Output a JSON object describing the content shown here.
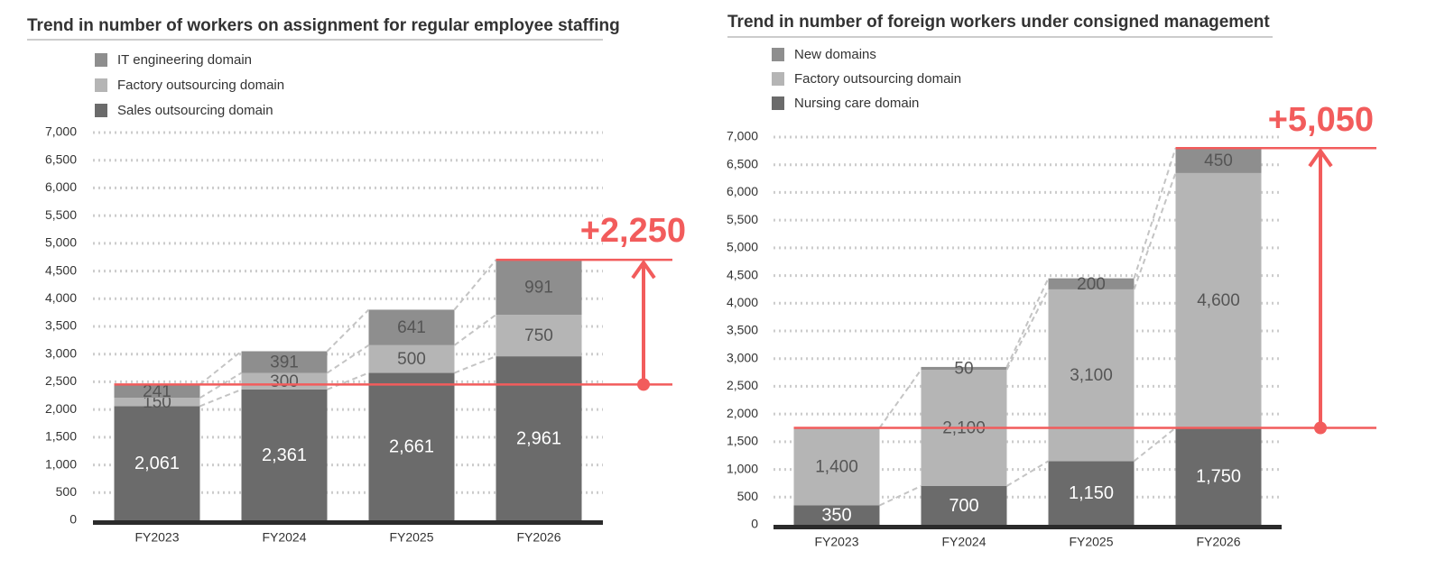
{
  "chart_data": [
    {
      "type": "bar",
      "stacked": true,
      "title": "Trend in number of workers on assignment for regular employee staffing",
      "categories": [
        "FY2023",
        "FY2024",
        "FY2025",
        "FY2026"
      ],
      "series": [
        {
          "name": "Sales outsourcing domain",
          "color": "#6b6b6b",
          "values": [
            2061,
            2361,
            2661,
            2961
          ],
          "value_labels": [
            "2,061",
            "2,361",
            "2,661",
            "2,961"
          ]
        },
        {
          "name": "Factory outsourcing domain",
          "color": "#b5b5b5",
          "values": [
            150,
            300,
            500,
            750
          ]
        },
        {
          "name": "IT engineering domain",
          "color": "#8e8e8e",
          "values": [
            241,
            391,
            641,
            991
          ]
        }
      ],
      "ylim": [
        0,
        7000
      ],
      "yticks": [
        0,
        500,
        {
          "value": 1000,
          "label": "1,000"
        },
        {
          "value": 1500,
          "label": "1,500"
        },
        {
          "value": 2000,
          "label": "2,000"
        },
        {
          "value": 2500,
          "label": "2,500"
        },
        {
          "value": 3000,
          "label": "3,000"
        },
        {
          "value": 3500,
          "label": "3,500"
        },
        {
          "value": 4000,
          "label": "4,000"
        },
        {
          "value": 4500,
          "label": "4,500"
        },
        {
          "value": 5000,
          "label": "5,000"
        },
        {
          "value": 5500,
          "label": "5,500"
        },
        {
          "value": 6000,
          "label": "6,000"
        },
        {
          "value": 6500,
          "label": "6,500"
        },
        {
          "value": 7000,
          "label": "7,000"
        }
      ],
      "grid": true,
      "annotation": "+2,250"
    },
    {
      "type": "bar",
      "stacked": true,
      "title": "Trend in number of foreign workers under consigned management",
      "categories": [
        "FY2023",
        "FY2024",
        "FY2025",
        "FY2026"
      ],
      "series": [
        {
          "name": "Nursing care domain",
          "color": "#6b6b6b",
          "values": [
            350,
            700,
            1150,
            1750
          ],
          "value_labels": [
            "350",
            "700",
            "1,150",
            "1,750"
          ]
        },
        {
          "name": "Factory outsourcing domain",
          "color": "#b5b5b5",
          "values": [
            1400,
            2100,
            3100,
            4600
          ],
          "value_labels": [
            "1,400",
            "2,100",
            "3,100",
            "4,600"
          ]
        },
        {
          "name": "New domains",
          "color": "#8e8e8e",
          "values": [
            null,
            50,
            200,
            450
          ]
        }
      ],
      "ylim": [
        0,
        7000
      ],
      "yticks": [
        0,
        500,
        {
          "value": 1000,
          "label": "1,000"
        },
        {
          "value": 1500,
          "label": "1,500"
        },
        {
          "value": 2000,
          "label": "2,000"
        },
        {
          "value": 2500,
          "label": "2,500"
        },
        {
          "value": 3000,
          "label": "3,000"
        },
        {
          "value": 3500,
          "label": "3,500"
        },
        {
          "value": 4000,
          "label": "4,000"
        },
        {
          "value": 4500,
          "label": "4,500"
        },
        {
          "value": 5000,
          "label": "5,000"
        },
        {
          "value": 5500,
          "label": "5,500"
        },
        {
          "value": 6000,
          "label": "6,000"
        },
        {
          "value": 6500,
          "label": "6,500"
        },
        {
          "value": 7000,
          "label": "7,000"
        }
      ],
      "grid": true,
      "annotation": "+5,050"
    }
  ]
}
